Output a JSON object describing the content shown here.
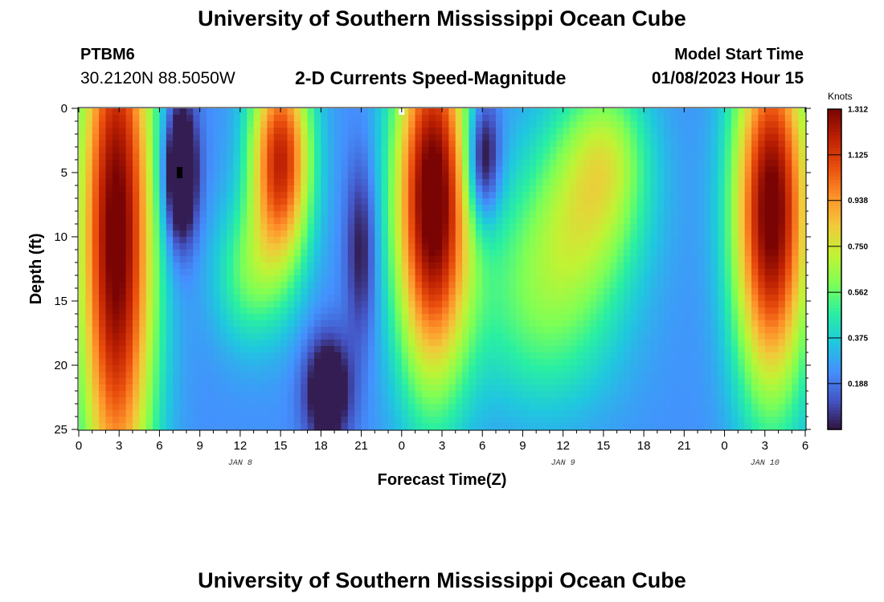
{
  "header": {
    "title": "University of Southern Mississippi Ocean Cube",
    "station": "PTBM6",
    "coordinates": "30.2120N  88.5050W",
    "subtitle": "2-D Currents Speed-Magnitude",
    "model_start_label": "Model Start Time",
    "model_start_value": "01/08/2023 Hour 15"
  },
  "footer": {
    "title": "University of Southern Mississippi Ocean Cube"
  },
  "chart_data": {
    "type": "heatmap",
    "title": "2-D Currents Speed-Magnitude",
    "xlabel": "Forecast Time(Z)",
    "ylabel": "Depth (ft)",
    "x_range_hours": [
      0,
      54
    ],
    "y_range_ft": [
      0,
      25
    ],
    "x_ticks": [
      {
        "hour": 0,
        "label": "0"
      },
      {
        "hour": 3,
        "label": "3"
      },
      {
        "hour": 6,
        "label": "6"
      },
      {
        "hour": 9,
        "label": "9"
      },
      {
        "hour": 12,
        "label": "12"
      },
      {
        "hour": 15,
        "label": "15"
      },
      {
        "hour": 18,
        "label": "18"
      },
      {
        "hour": 21,
        "label": "21"
      },
      {
        "hour": 24,
        "label": "0"
      },
      {
        "hour": 27,
        "label": "3"
      },
      {
        "hour": 30,
        "label": "6"
      },
      {
        "hour": 33,
        "label": "9"
      },
      {
        "hour": 36,
        "label": "12"
      },
      {
        "hour": 39,
        "label": "15"
      },
      {
        "hour": 42,
        "label": "18"
      },
      {
        "hour": 45,
        "label": "21"
      },
      {
        "hour": 48,
        "label": "0"
      },
      {
        "hour": 51,
        "label": "3"
      },
      {
        "hour": 54,
        "label": "6"
      }
    ],
    "y_ticks": [
      0,
      5,
      10,
      15,
      20,
      25
    ],
    "day_labels": [
      {
        "hour": 12,
        "label": "JAN 8"
      },
      {
        "hour": 36,
        "label": "JAN 9"
      },
      {
        "hour": 51,
        "label": "JAN 10"
      }
    ],
    "colorbar": {
      "units": "Knots",
      "min": 0.0,
      "max": 1.312,
      "ticks": [
        "1.312",
        "1.125",
        "0.938",
        "0.750",
        "0.562",
        "0.375",
        "0.188"
      ],
      "tick_values": [
        1.312,
        1.125,
        0.938,
        0.75,
        0.562,
        0.375,
        0.188
      ],
      "colors": [
        "#30123b",
        "#4454c4",
        "#4490fe",
        "#1fc8de",
        "#29efa2",
        "#7dff56",
        "#c1f334",
        "#f1ca3a",
        "#fe922a",
        "#ea4f0d",
        "#be2102",
        "#7a0403"
      ]
    },
    "blobs": [
      {
        "t": 2.8,
        "z": 10,
        "st": 2.0,
        "sz": 16,
        "v": 1.12
      },
      {
        "t": 7.5,
        "z": 5,
        "st": 0.9,
        "sz": 4,
        "v": -0.55
      },
      {
        "t": 15,
        "z": 4,
        "st": 1.6,
        "sz": 6,
        "v": 0.95
      },
      {
        "t": 12.5,
        "z": 13,
        "st": 1.8,
        "sz": 4,
        "v": 0.28
      },
      {
        "t": 18.5,
        "z": 22,
        "st": 1.2,
        "sz": 3,
        "v": -0.4
      },
      {
        "t": 21,
        "z": 11,
        "st": 0.8,
        "sz": 5,
        "v": -0.25
      },
      {
        "t": 26.3,
        "z": 7,
        "st": 2.0,
        "sz": 10,
        "v": 1.15
      },
      {
        "t": 30,
        "z": 4,
        "st": 0.9,
        "sz": 3.5,
        "v": -0.45
      },
      {
        "t": 34,
        "z": 14,
        "st": 3.5,
        "sz": 6,
        "v": 0.3
      },
      {
        "t": 38,
        "z": 7,
        "st": 3.0,
        "sz": 6,
        "v": 0.4
      },
      {
        "t": 39.5,
        "z": 3,
        "st": 2.0,
        "sz": 4,
        "v": 0.2
      },
      {
        "t": 36,
        "z": 20,
        "st": 4.0,
        "sz": 4,
        "v": 0.05
      },
      {
        "t": 51.5,
        "z": 8,
        "st": 2.0,
        "sz": 10,
        "v": 1.12
      }
    ],
    "base_value": 0.24,
    "markers": [
      {
        "hour": 7.5,
        "depth": 5,
        "color": "#000000"
      },
      {
        "hour": 24,
        "depth": 0,
        "color": "#ffffff"
      }
    ]
  }
}
